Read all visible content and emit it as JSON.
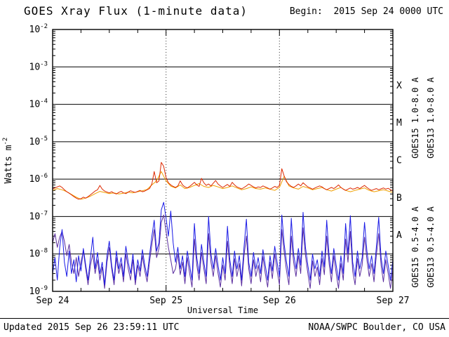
{
  "chart_data": {
    "type": "line",
    "title": "GOES Xray Flux (1-minute data)",
    "begin": "Begin:  2015 Sep 24 0000 UTC",
    "footer_updated": "Updated 2015 Sep 26 23:59:11 UTC",
    "footer_source": "NOAA/SWPC Boulder, CO USA",
    "xlabel": "Universal Time",
    "ylabel": "Watts m",
    "ylabel_exponent": "-2",
    "x_range_hours": [
      0,
      72
    ],
    "x_ticks": [
      {
        "hour": 0,
        "label": "Sep 24"
      },
      {
        "hour": 24,
        "label": "Sep 25"
      },
      {
        "hour": 48,
        "label": "Sep 26"
      },
      {
        "hour": 72,
        "label": "Sep 27"
      }
    ],
    "x_minor_tick_hours": 6,
    "y_log_range": [
      -9,
      -2
    ],
    "y_tick_exponents": [
      -2,
      -3,
      -4,
      -5,
      -6,
      -7,
      -8,
      -9
    ],
    "grid_line_exponents": [
      -3,
      -4,
      -5,
      -6,
      -7,
      -8
    ],
    "day_boundary_hours": [
      24,
      48
    ],
    "grid_on": true,
    "flare_classes": [
      {
        "label": "X",
        "band_exponents": [
          -4,
          -3
        ]
      },
      {
        "label": "M",
        "band_exponents": [
          -5,
          -4
        ]
      },
      {
        "label": "C",
        "band_exponents": [
          -6,
          -5
        ]
      },
      {
        "label": "B",
        "band_exponents": [
          -7,
          -6
        ]
      },
      {
        "label": "A",
        "band_exponents": [
          -8,
          -7
        ]
      }
    ],
    "legend": [
      {
        "label": "GOES15 1.0-8.0 A",
        "color": "#dd2800",
        "column": 0,
        "group": "long"
      },
      {
        "label": "GOES13 1.0-8.0 A",
        "color": "#f0a000",
        "column": 1,
        "group": "long"
      },
      {
        "label": "GOES15 0.5-4.0 A",
        "color": "#5a2d9e",
        "column": 0,
        "group": "short"
      },
      {
        "label": "GOES13 0.5-4.0 A",
        "color": "#1a1ae6",
        "column": 1,
        "group": "short"
      }
    ],
    "series": [
      {
        "name": "GOES15 0.5-4.0 A",
        "color": "#5a2d9e",
        "x0": 0,
        "dx": 0.5,
        "y": [
          2e-08,
          3.5e-08,
          1.5e-08,
          2.8e-08,
          4e-08,
          2.2e-08,
          9e-09,
          1.8e-08,
          6e-09,
          3e-09,
          8e-09,
          2.5e-09,
          6e-09,
          1.2e-08,
          4e-09,
          1.5e-09,
          5e-09,
          1e-08,
          3e-09,
          7e-09,
          2e-09,
          4.5e-09,
          1.2e-09,
          6e-09,
          1.5e-08,
          4e-09,
          1.5e-09,
          8e-09,
          3e-09,
          5.5e-09,
          1.8e-09,
          1e-08,
          4e-09,
          2e-09,
          7e-09,
          1.5e-09,
          5e-09,
          2.5e-09,
          9e-09,
          3.5e-09,
          1.8e-09,
          6e-09,
          1.8e-08,
          4.5e-08,
          8e-09,
          1.4e-08,
          7e-08,
          1.1e-07,
          4e-08,
          1.5e-08,
          7e-09,
          3e-09,
          4e-09,
          1e-08,
          2.8e-09,
          6e-09,
          1.6e-09,
          8e-09,
          3e-09,
          1.3e-09,
          2.5e-08,
          5e-09,
          2e-09,
          1.1e-08,
          4e-09,
          1.6e-09,
          3.5e-08,
          6e-09,
          2.5e-09,
          9e-09,
          3e-09,
          1.3e-09,
          5e-09,
          2e-09,
          2.2e-08,
          4.5e-09,
          1.6e-09,
          7.5e-09,
          2.5e-09,
          5.5e-09,
          1.4e-09,
          9e-09,
          3e-08,
          4e-09,
          1.6e-09,
          7e-09,
          2.5e-09,
          5e-09,
          1.8e-09,
          8.5e-09,
          3e-09,
          1.3e-09,
          6e-09,
          2.2e-09,
          1e-08,
          3.5e-09,
          1.5e-09,
          4.5e-08,
          1.1e-08,
          3.5e-09,
          1.5e-09,
          3e-08,
          6e-09,
          2.5e-09,
          9e-09,
          3e-09,
          5e-08,
          9e-09,
          3e-09,
          1.2e-09,
          6.5e-09,
          2.5e-09,
          4.5e-09,
          1.5e-09,
          7.5e-09,
          2.8e-09,
          3e-08,
          5.5e-09,
          1.8e-09,
          9e-09,
          3e-09,
          1.2e-09,
          5.5e-09,
          2e-09,
          2.5e-08,
          6e-09,
          4e-08,
          3.5e-09,
          1.5e-09,
          7.5e-09,
          2.5e-09,
          5e-09,
          2.8e-08,
          7e-09,
          2.5e-09,
          5.5e-09,
          1.8e-09,
          9e-09,
          3.5e-08,
          5e-09,
          1.8e-09,
          7e-09,
          3e-09,
          1.2e-09,
          4e-09
        ]
      },
      {
        "name": "GOES13 0.5-4.0 A",
        "color": "#1a1ae6",
        "x0": 0,
        "dx": 0.5,
        "y": [
          3e-09,
          8e-09,
          2e-09,
          1.5e-08,
          4.5e-08,
          6e-09,
          2.5e-09,
          1.2e-08,
          3e-09,
          7e-09,
          1.8e-09,
          9e-09,
          3.5e-09,
          1.4e-08,
          5e-09,
          2e-09,
          8e-09,
          2.8e-08,
          4e-09,
          1.1e-08,
          3e-09,
          6e-09,
          1.5e-09,
          9e-09,
          2.2e-08,
          5e-09,
          2e-09,
          1.2e-08,
          4e-09,
          8e-09,
          2.5e-09,
          1.6e-08,
          6e-09,
          3e-09,
          1e-08,
          2e-09,
          7e-09,
          3.5e-09,
          1.3e-08,
          5e-09,
          2.5e-09,
          9e-09,
          3e-08,
          8e-08,
          1.2e-08,
          2e-08,
          1.5e-07,
          2.4e-07,
          9e-08,
          3e-08,
          1.4e-07,
          2e-08,
          6e-09,
          1.5e-08,
          4e-09,
          9e-09,
          2.5e-09,
          1.2e-08,
          5e-09,
          2e-09,
          6.5e-08,
          8e-09,
          3e-09,
          1.8e-08,
          6e-09,
          2.5e-09,
          1e-07,
          1e-08,
          4e-09,
          1.4e-08,
          5e-09,
          2e-09,
          8e-09,
          3e-09,
          5.5e-08,
          7e-09,
          2.5e-09,
          1.2e-08,
          4e-09,
          9e-09,
          2e-09,
          1.5e-08,
          8.5e-08,
          6e-09,
          2.5e-09,
          1.1e-08,
          4e-09,
          8e-09,
          3e-09,
          1.3e-08,
          5e-09,
          2e-09,
          9e-09,
          3.5e-09,
          1.6e-08,
          6e-09,
          2.5e-09,
          1.1e-07,
          1.8e-08,
          6e-09,
          2.5e-09,
          9e-08,
          1e-08,
          4e-09,
          1.4e-08,
          5e-09,
          1.3e-07,
          1.5e-08,
          5e-09,
          2e-09,
          1e-08,
          4e-09,
          7e-09,
          2.5e-09,
          1.2e-08,
          4.5e-09,
          8e-08,
          9e-09,
          3e-09,
          1.4e-08,
          5e-09,
          2e-09,
          9e-09,
          3e-09,
          6.5e-08,
          1e-08,
          1.05e-07,
          6e-09,
          2.5e-09,
          1.2e-08,
          4e-09,
          8e-09,
          7e-08,
          1.2e-08,
          4e-09,
          9e-09,
          3e-09,
          1.5e-08,
          9.5e-08,
          8e-09,
          3e-09,
          1.2e-08,
          5e-09,
          2e-09,
          7e-09
        ]
      },
      {
        "name": "GOES13 1.0-8.0 A",
        "color": "#f0a000",
        "x0": 0,
        "dx": 1,
        "y": [
          5e-07,
          5.6e-07,
          5.2e-07,
          4.6e-07,
          3.9e-07,
          3.3e-07,
          2.9e-07,
          3.1e-07,
          3.5e-07,
          4.1e-07,
          4.7e-07,
          4.4e-07,
          4.1e-07,
          4.3e-07,
          4e-07,
          4.2e-07,
          4.5e-07,
          4.3e-07,
          4.6e-07,
          4.9e-07,
          5.3e-07,
          7e-07,
          9e-07,
          1.6e-06,
          9e-07,
          6.5e-07,
          5.8e-07,
          7e-07,
          5.6e-07,
          6e-07,
          6.8e-07,
          7.6e-07,
          6.4e-07,
          6e-07,
          6.8e-07,
          6.2e-07,
          5.6e-07,
          6e-07,
          6.6e-07,
          5.8e-07,
          5.2e-07,
          5.6e-07,
          6.2e-07,
          5.6e-07,
          5.4e-07,
          5.8e-07,
          5.4e-07,
          5e-07,
          6e-07,
          1.2e-06,
          6.6e-07,
          5.8e-07,
          5.4e-07,
          6.4e-07,
          5.8e-07,
          5.2e-07,
          5.6e-07,
          6e-07,
          5.2e-07,
          4.8e-07,
          5.4e-07,
          6e-07,
          5e-07,
          4.6e-07,
          5e-07,
          5.4e-07,
          5.8e-07,
          5e-07,
          4.6e-07,
          4.9e-07,
          5.2e-07,
          4.8e-07,
          4.4e-07
        ]
      },
      {
        "name": "GOES15 1.0-8.0 A",
        "color": "#dd2800",
        "x0": 0,
        "dx": 0.5,
        "y": [
          5.5e-07,
          5.8e-07,
          6.2e-07,
          6.6e-07,
          6e-07,
          5.2e-07,
          4.6e-07,
          4.2e-07,
          3.8e-07,
          3.4e-07,
          3.1e-07,
          2.9e-07,
          3e-07,
          3.3e-07,
          3.1e-07,
          3.4e-07,
          3.8e-07,
          4.3e-07,
          4.8e-07,
          5.2e-07,
          6.8e-07,
          5.4e-07,
          4.8e-07,
          4.5e-07,
          4.3e-07,
          4.6e-07,
          4.2e-07,
          4e-07,
          4.4e-07,
          4.7e-07,
          4.3e-07,
          4.1e-07,
          4.5e-07,
          4.9e-07,
          4.6e-07,
          4.4e-07,
          4.7e-07,
          5e-07,
          4.6e-07,
          4.8e-07,
          5.2e-07,
          5.6e-07,
          7.5e-07,
          1.6e-06,
          8e-07,
          9e-07,
          2.8e-06,
          2.2e-06,
          1.1e-06,
          8e-07,
          7e-07,
          6.4e-07,
          6e-07,
          6.6e-07,
          9e-07,
          7e-07,
          6.2e-07,
          5.8e-07,
          6.4e-07,
          7.2e-07,
          8.2e-07,
          7e-07,
          6.4e-07,
          1.05e-06,
          8e-07,
          6.8e-07,
          7.4e-07,
          6.6e-07,
          7.8e-07,
          9.2e-07,
          7.4e-07,
          6.6e-07,
          6e-07,
          6.6e-07,
          7.2e-07,
          6.4e-07,
          8.2e-07,
          7e-07,
          6.2e-07,
          5.8e-07,
          5.5e-07,
          6e-07,
          6.6e-07,
          7.4e-07,
          6.8e-07,
          6.2e-07,
          5.8e-07,
          6.2e-07,
          6e-07,
          6.6e-07,
          6.2e-07,
          5.8e-07,
          5.4e-07,
          5.8e-07,
          6.4e-07,
          6e-07,
          6.8e-07,
          1.9e-06,
          1.2e-06,
          8.5e-07,
          7.2e-07,
          6.4e-07,
          6e-07,
          6.6e-07,
          7.4e-07,
          6.6e-07,
          8e-07,
          7e-07,
          6.2e-07,
          5.8e-07,
          5.4e-07,
          5.8e-07,
          6.2e-07,
          6.6e-07,
          6.2e-07,
          5.6e-07,
          5.2e-07,
          5.6e-07,
          6e-07,
          5.6e-07,
          6.2e-07,
          7e-07,
          6e-07,
          5.4e-07,
          5e-07,
          5.4e-07,
          5.8e-07,
          5.4e-07,
          5.6e-07,
          6e-07,
          5.6e-07,
          6.2e-07,
          6.8e-07,
          6e-07,
          5.4e-07,
          5e-07,
          5.3e-07,
          5.6e-07,
          5.2e-07,
          5.5e-07,
          5.8e-07,
          5.4e-07,
          5.7e-07,
          5.2e-07,
          4.9e-07
        ]
      }
    ]
  }
}
